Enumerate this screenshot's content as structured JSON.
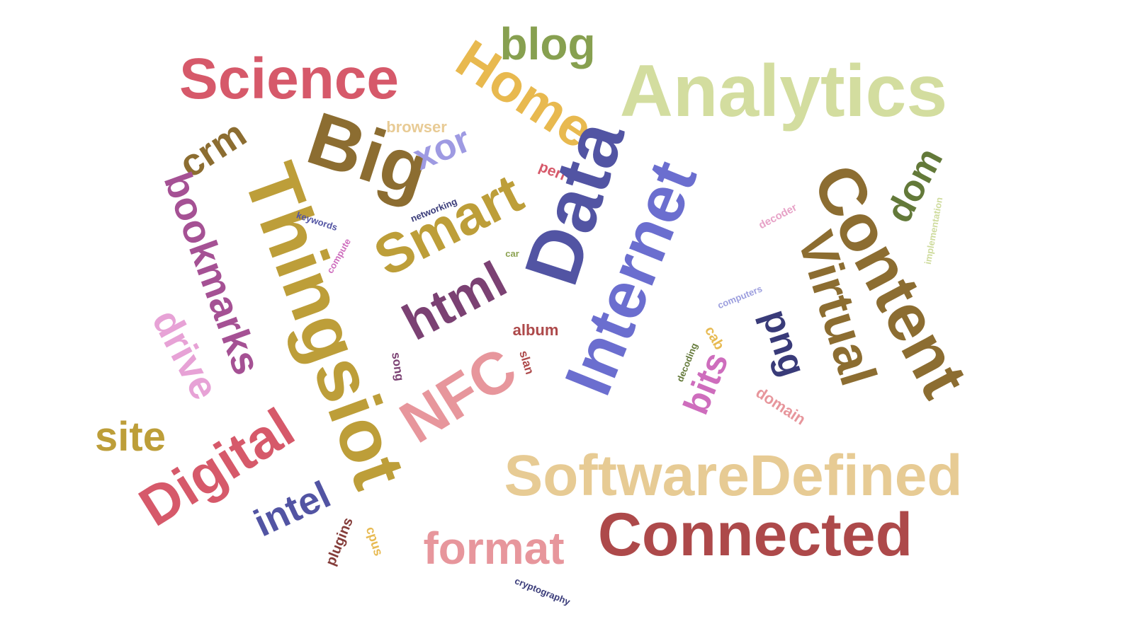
{
  "words": [
    {
      "text": "Science",
      "color": "#d6596a"
    },
    {
      "text": "Home",
      "color": "#e8b94f"
    },
    {
      "text": "blog",
      "color": "#87a050"
    },
    {
      "text": "Analytics",
      "color": "#d3dd9f"
    },
    {
      "text": "browser",
      "color": "#e8cb95"
    },
    {
      "text": "Big",
      "color": "#8c6d31"
    },
    {
      "text": "crm",
      "color": "#8c6d31"
    },
    {
      "text": "xor",
      "color": "#9e9ae2"
    },
    {
      "text": "perl",
      "color": "#d6596a"
    },
    {
      "text": "Data",
      "color": "#5254a3"
    },
    {
      "text": "Internet",
      "color": "#6b6ecf"
    },
    {
      "text": "Content",
      "color": "#8c6d31"
    },
    {
      "text": "dom",
      "color": "#637939"
    },
    {
      "text": "implementation",
      "color": "#cedb9c"
    },
    {
      "text": "decoder",
      "color": "#e7a2c7"
    },
    {
      "text": "Virtual",
      "color": "#8c6d31"
    },
    {
      "text": "Thingsiot",
      "color": "#bd9e39"
    },
    {
      "text": "bookmarks",
      "color": "#a55194"
    },
    {
      "text": "Smart",
      "color": "#bd9e39"
    },
    {
      "text": "networking",
      "color": "#393b79"
    },
    {
      "text": "keywords",
      "color": "#5254a3"
    },
    {
      "text": "compute",
      "color": "#ce6dbd"
    },
    {
      "text": "car",
      "color": "#8ca252"
    },
    {
      "text": "html",
      "color": "#7b4173"
    },
    {
      "text": "computers",
      "color": "#9c9ede"
    },
    {
      "text": "png",
      "color": "#393b79"
    },
    {
      "text": "drive",
      "color": "#e7a2d6"
    },
    {
      "text": "album",
      "color": "#ad494a"
    },
    {
      "text": "cab",
      "color": "#e7ba52"
    },
    {
      "text": "song",
      "color": "#7b4173"
    },
    {
      "text": "slan",
      "color": "#ad494a"
    },
    {
      "text": "decoding",
      "color": "#637939"
    },
    {
      "text": "bits",
      "color": "#ce6dbd"
    },
    {
      "text": "domain",
      "color": "#e7969c"
    },
    {
      "text": "NFC",
      "color": "#e7969c"
    },
    {
      "text": "site",
      "color": "#bd9e39"
    },
    {
      "text": "Digital",
      "color": "#d6596a"
    },
    {
      "text": "SoftwareDefined",
      "color": "#e7cb94"
    },
    {
      "text": "intel",
      "color": "#5254a3"
    },
    {
      "text": "plugins",
      "color": "#843c39"
    },
    {
      "text": "cpus",
      "color": "#e7ba52"
    },
    {
      "text": "format",
      "color": "#e7969c"
    },
    {
      "text": "Connected",
      "color": "#ad494a"
    },
    {
      "text": "cryptography",
      "color": "#393b79"
    }
  ]
}
